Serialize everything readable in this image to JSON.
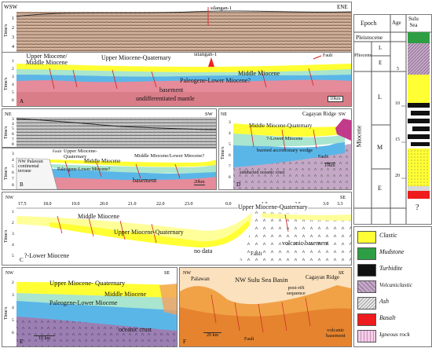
{
  "seismic_a": {
    "dir_left": "WSW",
    "dir_right": "ENE",
    "well": "silangan-1",
    "axis_title": "Time/s",
    "ticks": [
      "1",
      "2",
      "3",
      "4"
    ]
  },
  "section_a": {
    "axis_title": "Time/s",
    "ticks": [
      "1",
      "2",
      "3",
      "4",
      "5",
      "6"
    ],
    "units": [
      "Upper Miocene/\nMiddle Miocene",
      "Upper Miocene-Quaternary",
      "Middle Miocene",
      "Paleogene-Lower Miocene?",
      "basement",
      "undifferentiated mantle"
    ],
    "well": "silangan-1",
    "fault": "Fault",
    "panel_letter": "A",
    "scale": "10km"
  },
  "seismic_b": {
    "dir_left": "NE",
    "dir_right": "SW",
    "axis_title": "Time/s",
    "ticks": [
      "3",
      "4",
      "5",
      "6",
      "7",
      "8"
    ]
  },
  "section_b": {
    "axis_title": "Time/s",
    "ticks": [
      "3",
      "4",
      "5",
      "6",
      "7",
      "8"
    ],
    "units": [
      "NW Palawan\ncontinental\nterrane",
      "Upper Miocene-\nQuaternary",
      "Middle Miocene",
      "Middle Miocene/Lower Miocene?",
      "Paleogene-Lower Miocene?",
      "basement"
    ],
    "fault": "Fault",
    "panel_letter": "B",
    "scale": "20km"
  },
  "section_d": {
    "dir_left": "NE",
    "dir_right": "SW",
    "axis_title": "Time/s",
    "ticks": [
      "3",
      "4",
      "5",
      "6",
      "7",
      "8"
    ],
    "units": [
      "Cagayan Ridge",
      "Middle Miocene-Quaternary",
      "?-Lower Miocene",
      "burried accretionary wedge",
      "subducted oceanic crust"
    ],
    "fault": "Fault",
    "panel_letter": "D",
    "scale": "10km"
  },
  "section_c": {
    "dir_left": "NW",
    "dir_right": "SE",
    "distance_ticks": [
      "17.5",
      "18.0",
      "19.0",
      "20.0",
      "21.0",
      "22.0",
      "23.0",
      "0.0",
      "1.0",
      "2.0",
      "3.0",
      "3.3"
    ],
    "axis_title": "Time/s",
    "ticks": [
      "1",
      "2",
      "3",
      "4",
      "5"
    ],
    "units": [
      "Middle Miocene",
      "Upper Miocene-Quaternary",
      "Upper Miocene-Quaternary",
      "?-Lower Miocene",
      "no data",
      "volcanic basement"
    ],
    "fault": "Fault",
    "panel_letter": "C"
  },
  "section_e": {
    "dir_left": "NW",
    "dir_right": "SE",
    "axis_title": "Time/s",
    "ticks": [
      "2",
      "3",
      "4",
      "5",
      "6"
    ],
    "units": [
      "Upper Miocene- Quaternary",
      "Middle Miocene",
      "Paleogene-Lower Miocene",
      "oceanic crust"
    ],
    "panel_letter": "E",
    "scale": "10 km"
  },
  "section_f": {
    "dir_left": "NW",
    "dir_right": "SE",
    "units": [
      "Palawan",
      "NW Sulu Sea Basin",
      "post-rift\nsequence",
      "Cagayan Ridge",
      "volcanic\nbasement"
    ],
    "fault": "Fault",
    "panel_letter": "F",
    "scale": "20 km"
  },
  "stratigraphy": {
    "headers": [
      "Epoch",
      "Age",
      "Sulu\nSea"
    ],
    "epochs": [
      "Pleistocene",
      "Pliocene",
      "L",
      "E",
      "Miocene",
      "L",
      "M",
      "E"
    ],
    "ages": [
      "5",
      "10",
      "15",
      "20"
    ],
    "unknown": "?"
  },
  "legend": {
    "items": [
      {
        "label": "Clastic",
        "color": "#ffff33"
      },
      {
        "label": "Mudstone",
        "color": "#2e9e44"
      },
      {
        "label": "Turbidite",
        "color": "#111111"
      },
      {
        "label": "Volcaniclastic",
        "color": "#c4a8c6"
      },
      {
        "label": "Ash",
        "color": "#d8d8d8"
      },
      {
        "label": "Basalt",
        "color": "#ee1c1c"
      },
      {
        "label": "Igneous rock",
        "color": "#f1cfe6"
      }
    ]
  },
  "colors": {
    "clastic": "#ffff33",
    "middle_miocene": "#a9e5cf",
    "paleogene": "#5bb6e8",
    "basement": "#e58b9a",
    "mantle": "#d77c88",
    "seismic": "#cfa78d",
    "basin_f": "#f1a247"
  }
}
